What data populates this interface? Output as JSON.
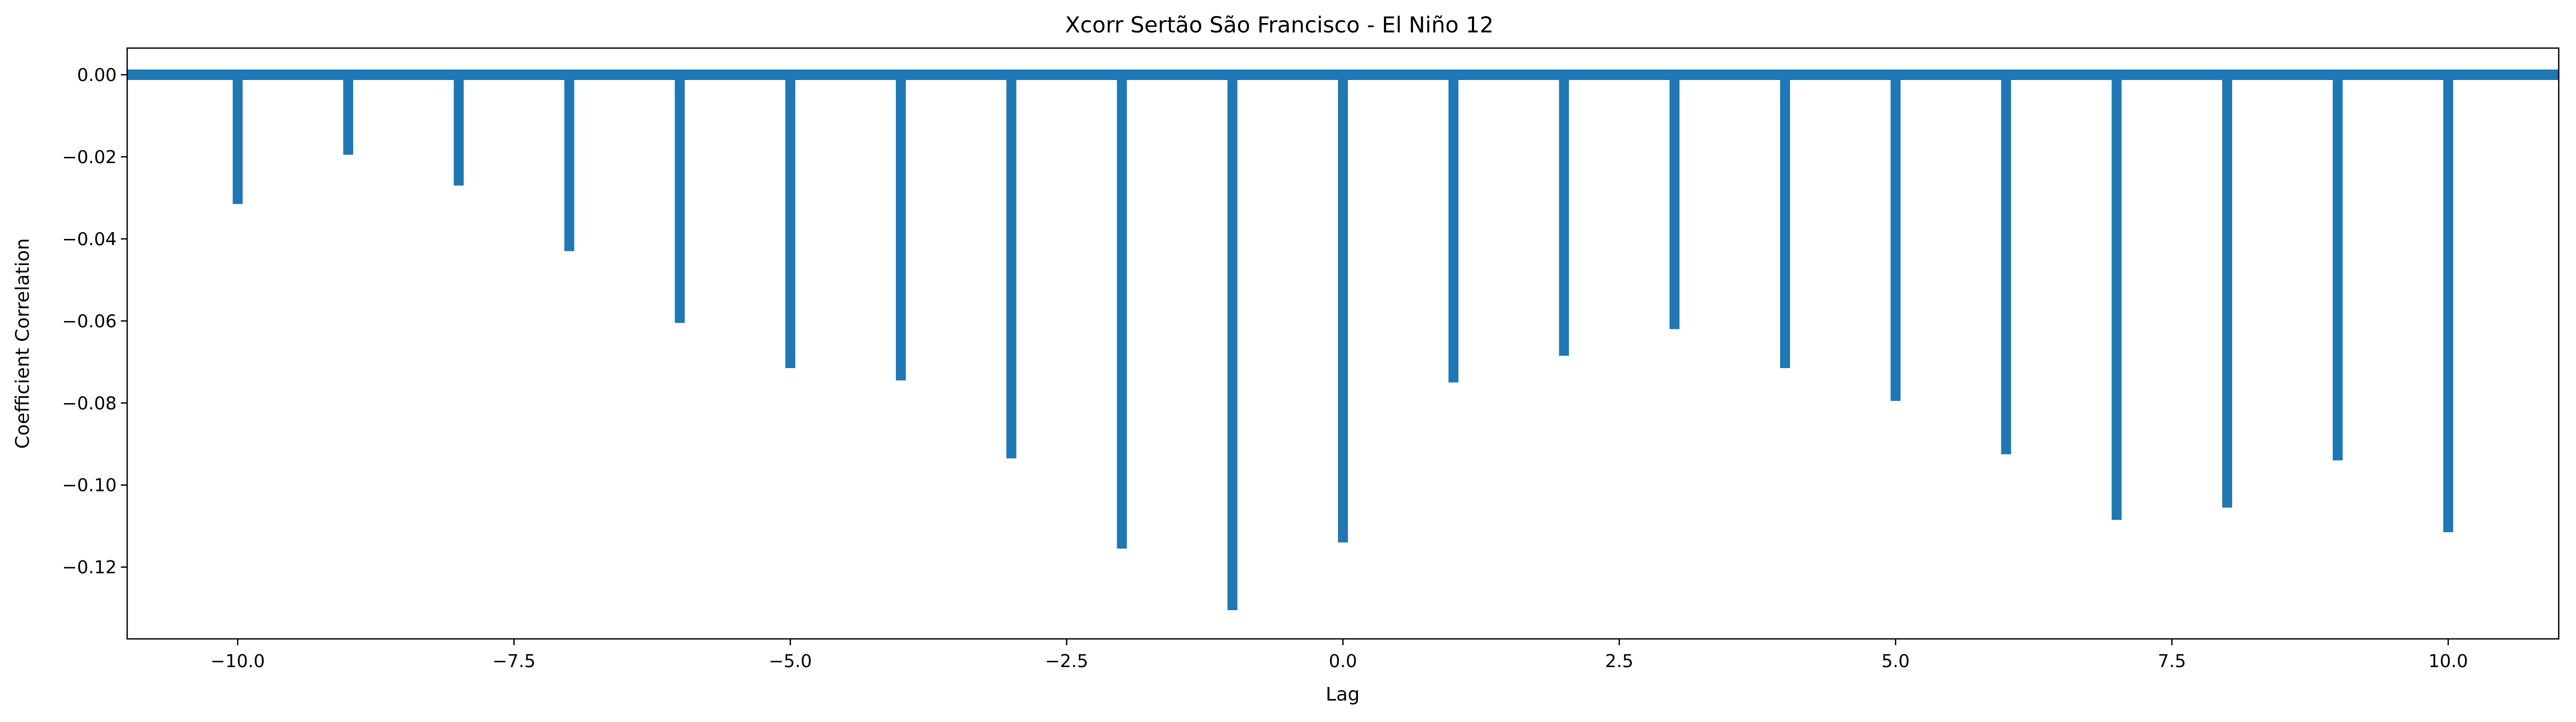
{
  "chart_data": {
    "type": "bar",
    "title": "Xcorr Sertão São Francisco - El Niño 12",
    "xlabel": "Lag",
    "ylabel": "Coefficient Correlation",
    "x": [
      -10,
      -9,
      -8,
      -7,
      -6,
      -5,
      -4,
      -3,
      -2,
      -1,
      0,
      1,
      2,
      3,
      4,
      5,
      6,
      7,
      8,
      9,
      10
    ],
    "values": [
      -0.0315,
      -0.0195,
      -0.027,
      -0.043,
      -0.0605,
      -0.0715,
      -0.0745,
      -0.0935,
      -0.1155,
      -0.1305,
      -0.114,
      -0.075,
      -0.0685,
      -0.062,
      -0.0715,
      -0.0795,
      -0.0925,
      -0.1085,
      -0.1055,
      -0.094,
      -0.1115
    ],
    "xlim": [
      -11,
      11
    ],
    "ylim": [
      -0.1375,
      0.0065
    ],
    "xticks": [
      -10.0,
      -7.5,
      -5.0,
      -2.5,
      0.0,
      2.5,
      5.0,
      7.5,
      10.0
    ],
    "xtick_labels": [
      "−10.0",
      "−7.5",
      "−5.0",
      "−2.5",
      "0.0",
      "2.5",
      "5.0",
      "7.5",
      "10.0"
    ],
    "yticks": [
      0.0,
      -0.02,
      -0.04,
      -0.06,
      -0.08,
      -0.1,
      -0.12
    ],
    "ytick_labels": [
      "0.00",
      "−0.02",
      "−0.04",
      "−0.06",
      "−0.08",
      "−0.10",
      "−0.12"
    ],
    "baseline": 0,
    "grid": false,
    "legend": "none",
    "color": "#1f77b4"
  }
}
